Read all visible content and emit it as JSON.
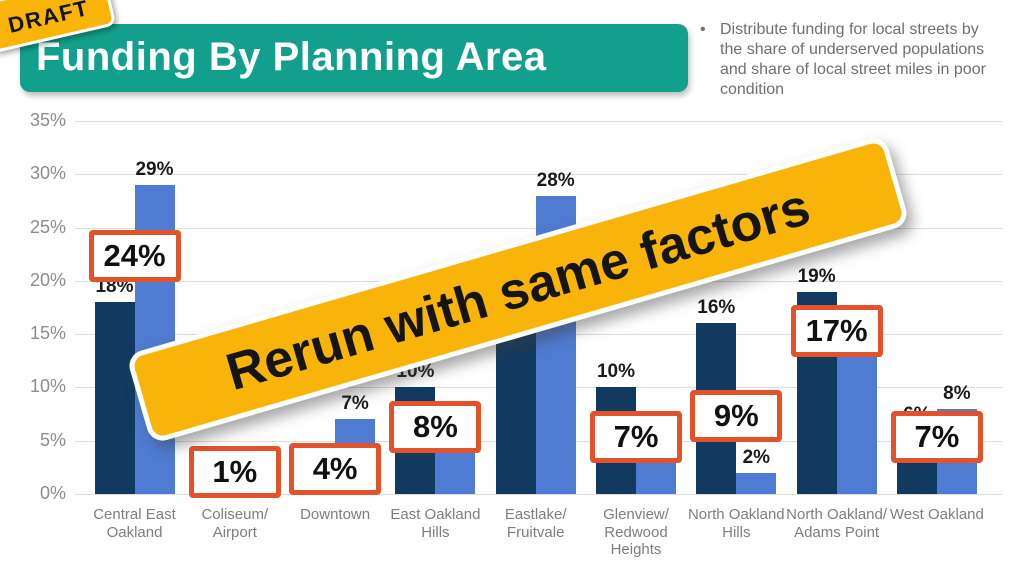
{
  "slide": {
    "draft_label": "DRAFT",
    "title": "Funding By Planning Area",
    "bullet_glyph": "•",
    "bullet_text": "Distribute funding for local streets by the share of underserved populations and share of local street miles in poor condition",
    "banner_text": "Rerun with same factors"
  },
  "colors": {
    "teal": "#12A08C",
    "yellow": "#F9B409",
    "orange": "#E2532B",
    "navy": "#123A60",
    "blue": "#4F7BD2",
    "gridline": "#dcdcdc",
    "axis_text": "#8c8c8c",
    "category_text": "#7e7e7e"
  },
  "chart_data": {
    "type": "bar",
    "title": "Funding By Planning Area",
    "xlabel": "",
    "ylabel": "",
    "ylim": [
      0,
      35
    ],
    "yticks": [
      35,
      30,
      25,
      20,
      15,
      10,
      5,
      0
    ],
    "ytick_labels": [
      "35%",
      "30%",
      "25%",
      "20%",
      "15%",
      "10%",
      "5%",
      "0%"
    ],
    "grid": true,
    "legend_position": "none",
    "categories": [
      "Central East Oakland",
      "Coliseum/ Airport",
      "Downtown",
      "East Oakland Hills",
      "Eastlake/ Fruitvale",
      "Glenview/ Redwood Heights",
      "North Oakland Hills",
      "North Oakland/ Adams Point",
      "West Oakland"
    ],
    "series": [
      {
        "name": "navy-series",
        "color": "#123A60",
        "values": [
          18,
          1,
          1,
          10,
          23,
          10,
          16,
          19,
          6
        ],
        "labels": [
          "18%",
          "",
          "",
          "10%",
          "",
          "10%",
          "16%",
          "19%",
          "6%"
        ]
      },
      {
        "name": "blue-series",
        "color": "#4F7BD2",
        "values": [
          29,
          1,
          7,
          8,
          28,
          3,
          2,
          17,
          8
        ],
        "labels": [
          "29%",
          "",
          "7%",
          "",
          "28%",
          "",
          "2%",
          "",
          "8%"
        ]
      }
    ],
    "boxed_labels": [
      "24%",
      "1%",
      "4%",
      "8%",
      "",
      "7%",
      "9%",
      "17%",
      "7%"
    ]
  }
}
